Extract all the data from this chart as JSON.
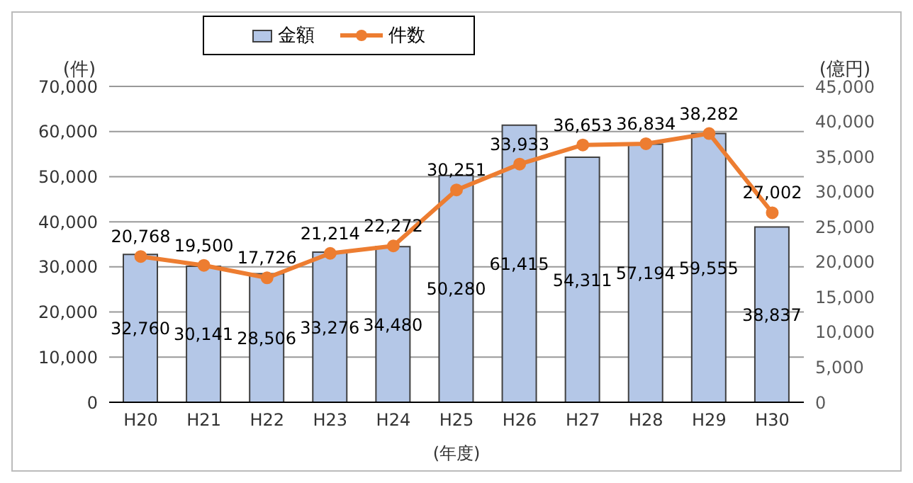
{
  "chart_data": {
    "type": "bar",
    "xlabel": "(年度)",
    "ylabel": "(件)",
    "y2label": "(億円)",
    "categories": [
      "H20",
      "H21",
      "H22",
      "H23",
      "H24",
      "H25",
      "H26",
      "H27",
      "H28",
      "H29",
      "H30"
    ],
    "series": [
      {
        "name": "金額",
        "color": "#b4c7e7",
        "values": [
          32760,
          30141,
          28506,
          33276,
          34480,
          50280,
          61415,
          54311,
          57194,
          59555,
          38837
        ],
        "value_labels": [
          "32,760",
          "30,141",
          "28,506",
          "33,276",
          "34,480",
          "50,280",
          "61,415",
          "54,311",
          "57,194",
          "59,555",
          "38,837"
        ]
      },
      {
        "name": "件数",
        "type": "line",
        "axis": "y2",
        "color": "#ed7d31",
        "values": [
          20768,
          19500,
          17726,
          21214,
          22272,
          30251,
          33933,
          36653,
          36834,
          38282,
          27002
        ],
        "value_labels": [
          "20,768",
          "19,500",
          "17,726",
          "21,214",
          "22,272",
          "30,251",
          "33,933",
          "36,653",
          "36,834",
          "38,282",
          "27,002"
        ]
      }
    ],
    "ylim": [
      0,
      70000
    ],
    "yticks": [
      0,
      {
        "value": 10000,
        "label": "10,000"
      },
      {
        "value": 20000,
        "label": "20,000"
      },
      {
        "value": 30000,
        "label": "30,000"
      },
      {
        "value": 40000,
        "label": "40,000"
      },
      {
        "value": 50000,
        "label": "50,000"
      },
      {
        "value": 60000,
        "label": "60,000"
      },
      {
        "value": 70000,
        "label": "70,000"
      }
    ],
    "y2lim": [
      0,
      45000
    ],
    "y2ticks": [
      0,
      {
        "value": 5000,
        "label": "5,000"
      },
      {
        "value": 10000,
        "label": "10,000"
      },
      {
        "value": 15000,
        "label": "15,000"
      },
      {
        "value": 20000,
        "label": "20,000"
      },
      {
        "value": 25000,
        "label": "25,000"
      },
      {
        "value": 30000,
        "label": "30,000"
      },
      {
        "value": 35000,
        "label": "35,000"
      },
      {
        "value": 40000,
        "label": "40,000"
      },
      {
        "value": 45000,
        "label": "45,000"
      }
    ],
    "grid": "y",
    "legend": "top",
    "marker": "circle"
  }
}
